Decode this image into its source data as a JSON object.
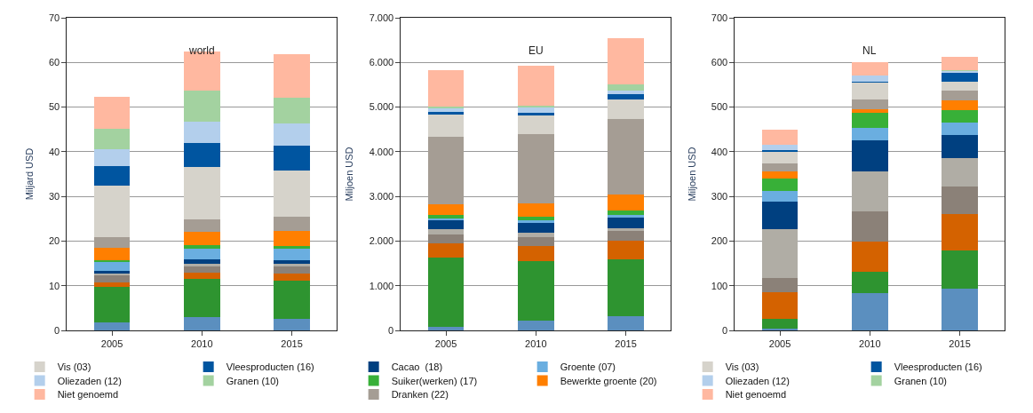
{
  "chart_data": [
    {
      "type": "bar",
      "stacked": true,
      "title": "world",
      "ylabel": "Miljard USD",
      "categories": [
        "2005",
        "2010",
        "2015"
      ],
      "ylim": [
        0,
        70
      ],
      "yticks": [
        0,
        10,
        20,
        30,
        40,
        50,
        60,
        70
      ],
      "grid": "y",
      "legend": "bottom",
      "series": [
        {
          "color": "#5b8fbf",
          "values": [
            1.8,
            3.0,
            2.5
          ]
        },
        {
          "color": "#2e9430",
          "values": [
            8.0,
            8.5,
            8.7
          ]
        },
        {
          "color": "#d46200",
          "values": [
            1.0,
            1.4,
            1.5
          ]
        },
        {
          "color": "#8b8178",
          "values": [
            1.5,
            1.5,
            1.7
          ]
        },
        {
          "color": "#b0ada5",
          "values": [
            0.4,
            0.6,
            0.5
          ]
        },
        {
          "color": "#004080",
          "values": [
            0.7,
            0.9,
            0.9
          ]
        },
        {
          "color": "#6aaee0",
          "values": [
            2.0,
            2.3,
            2.5
          ]
        },
        {
          "color": "#38b038",
          "values": [
            0.4,
            0.9,
            0.6
          ]
        },
        {
          "color": "#ff7f00",
          "values": [
            2.7,
            2.9,
            3.3
          ]
        },
        {
          "color": "#a59d94",
          "values": [
            2.4,
            2.8,
            3.3
          ]
        },
        {
          "name": "Vis (03)",
          "color": "#d6d3cb",
          "values": [
            11.6,
            11.8,
            10.2
          ]
        },
        {
          "name": "Vleesproducten (16)",
          "color": "#0055a0",
          "values": [
            4.3,
            5.3,
            5.6
          ]
        },
        {
          "name": "Oliezaden (12)",
          "color": "#b3cfec",
          "values": [
            3.7,
            4.8,
            5.0
          ]
        },
        {
          "name": "Granen (10)",
          "color": "#a3d2a0",
          "values": [
            4.7,
            6.9,
            5.9
          ]
        },
        {
          "name": "Niet genoemd",
          "color": "#ffb8a0",
          "values": [
            7.2,
            8.8,
            9.7
          ]
        }
      ]
    },
    {
      "type": "bar",
      "stacked": true,
      "title": "EU",
      "ylabel": "Miljoen USD",
      "categories": [
        "2005",
        "2010",
        "2015"
      ],
      "ylim": [
        0,
        7000
      ],
      "yticks": [
        0,
        {
          "value": 1000,
          "label": "1.000"
        },
        {
          "value": 2000,
          "label": "2.000"
        },
        {
          "value": 3000,
          "label": "3.000"
        },
        {
          "value": 4000,
          "label": "4.000"
        },
        {
          "value": 5000,
          "label": "5.000"
        },
        {
          "value": 6000,
          "label": "6.000"
        },
        {
          "value": 7000,
          "label": "7.000"
        }
      ],
      "grid": "y",
      "legend": "bottom",
      "series": [
        {
          "color": "#5b8fbf",
          "values": [
            70,
            210,
            310
          ]
        },
        {
          "color": "#2e9430",
          "values": [
            1570,
            1340,
            1290
          ]
        },
        {
          "color": "#d46200",
          "values": [
            310,
            340,
            410
          ]
        },
        {
          "color": "#8b8178",
          "values": [
            200,
            200,
            210
          ]
        },
        {
          "color": "#b0ada5",
          "values": [
            120,
            100,
            70
          ]
        },
        {
          "name": "Cacao  (18)",
          "color": "#004080",
          "values": [
            190,
            210,
            240
          ]
        },
        {
          "name": "Groente (07)",
          "color": "#6aaee0",
          "values": [
            50,
            60,
            60
          ]
        },
        {
          "name": "Suiker(werken) (17)",
          "color": "#38b038",
          "values": [
            80,
            90,
            90
          ]
        },
        {
          "name": "Bewerkte groente (20)",
          "color": "#ff7f00",
          "values": [
            240,
            300,
            370
          ]
        },
        {
          "name": "Dranken (22)",
          "color": "#a59d94",
          "values": [
            1510,
            1550,
            1680
          ]
        },
        {
          "color": "#d6d3cb",
          "values": [
            500,
            410,
            440
          ]
        },
        {
          "color": "#0055a0",
          "values": [
            60,
            70,
            110
          ]
        },
        {
          "color": "#b3cfec",
          "values": [
            70,
            120,
            90
          ]
        },
        {
          "color": "#a3d2a0",
          "values": [
            50,
            40,
            140
          ]
        },
        {
          "color": "#ffb8a0",
          "values": [
            800,
            880,
            1040
          ]
        }
      ]
    },
    {
      "type": "bar",
      "stacked": true,
      "title": "NL",
      "ylabel": "Miljoen USD",
      "categories": [
        "2005",
        "2010",
        "2015"
      ],
      "ylim": [
        0,
        700
      ],
      "yticks": [
        0,
        100,
        200,
        300,
        400,
        500,
        600,
        700
      ],
      "grid": "y",
      "legend": "bottom",
      "series": [
        {
          "color": "#5b8fbf",
          "values": [
            3,
            84,
            93
          ]
        },
        {
          "color": "#2e9430",
          "values": [
            22,
            48,
            86
          ]
        },
        {
          "color": "#d46200",
          "values": [
            61,
            66,
            81
          ]
        },
        {
          "color": "#8b8178",
          "values": [
            31,
            68,
            63
          ]
        },
        {
          "color": "#b0ada5",
          "values": [
            110,
            90,
            62
          ]
        },
        {
          "color": "#004080",
          "values": [
            61,
            70,
            52
          ]
        },
        {
          "color": "#6aaee0",
          "values": [
            24,
            28,
            28
          ]
        },
        {
          "color": "#38b038",
          "values": [
            28,
            33,
            28
          ]
        },
        {
          "color": "#ff7f00",
          "values": [
            16,
            8,
            22
          ]
        },
        {
          "color": "#a59d94",
          "values": [
            17,
            23,
            21
          ]
        },
        {
          "name": "Vis (03)",
          "color": "#d6d3cb",
          "values": [
            28,
            37,
            21
          ]
        },
        {
          "name": "Vleesproducten (16)",
          "color": "#0055a0",
          "values": [
            2,
            1,
            19
          ]
        },
        {
          "name": "Oliezaden (12)",
          "color": "#b3cfec",
          "values": [
            13,
            14,
            5
          ]
        },
        {
          "name": "Granen (10)",
          "color": "#a3d2a0",
          "values": [
            0,
            0,
            1
          ]
        },
        {
          "name": "Niet genoemd",
          "color": "#ffb8a0",
          "values": [
            34,
            30,
            31
          ]
        }
      ]
    }
  ]
}
